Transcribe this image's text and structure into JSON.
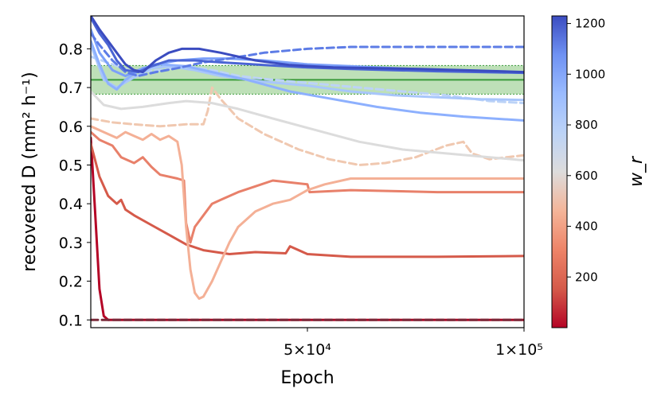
{
  "chart_data": {
    "type": "line",
    "xlabel": "Epoch",
    "ylabel": "recovered D (mm² h⁻¹)",
    "xlim": [
      0,
      100000
    ],
    "ylim": [
      0.08,
      0.885
    ],
    "x_ticks": [
      50000,
      100000
    ],
    "x_tick_labels": [
      "5×10⁴",
      "1×10⁵"
    ],
    "y_ticks": [
      0.1,
      0.2,
      0.3,
      0.4,
      0.5,
      0.6,
      0.7,
      0.8
    ],
    "y_tick_labels": [
      "0.1",
      "0.2",
      "0.3",
      "0.4",
      "0.5",
      "0.6",
      "0.7",
      "0.8"
    ],
    "grid": false,
    "reference": {
      "value": 0.72,
      "band": [
        0.683,
        0.757
      ],
      "color": "#3a9a3a",
      "band_color": "#a8d5a0"
    },
    "colorbar": {
      "label": "w_r",
      "range": [
        0,
        1230
      ],
      "ticks": [
        200,
        400,
        600,
        800,
        1000,
        1200
      ],
      "tick_labels": [
        "200",
        "400",
        "600",
        "800",
        "1000",
        "1200"
      ],
      "colormap": "coolwarm"
    },
    "series": [
      {
        "color": "#b40426",
        "dash": false,
        "points": [
          [
            0,
            0.57
          ],
          [
            1000,
            0.38
          ],
          [
            2000,
            0.18
          ],
          [
            3000,
            0.11
          ],
          [
            4000,
            0.1
          ],
          [
            100000,
            0.1
          ]
        ]
      },
      {
        "color": "#7a2a3a",
        "dash": true,
        "points": [
          [
            0,
            0.1
          ],
          [
            100000,
            0.1
          ]
        ]
      },
      {
        "color": "#d55a4a",
        "dash": false,
        "points": [
          [
            0,
            0.555
          ],
          [
            2000,
            0.47
          ],
          [
            4000,
            0.42
          ],
          [
            6000,
            0.4
          ],
          [
            7000,
            0.41
          ],
          [
            8000,
            0.385
          ],
          [
            10000,
            0.37
          ],
          [
            14000,
            0.345
          ],
          [
            18000,
            0.32
          ],
          [
            22000,
            0.295
          ],
          [
            26000,
            0.28
          ],
          [
            32000,
            0.27
          ],
          [
            38000,
            0.275
          ],
          [
            45000,
            0.272
          ],
          [
            46000,
            0.29
          ],
          [
            50000,
            0.27
          ],
          [
            60000,
            0.263
          ],
          [
            80000,
            0.263
          ],
          [
            100000,
            0.265
          ]
        ]
      },
      {
        "color": "#e8806a",
        "dash": false,
        "points": [
          [
            0,
            0.585
          ],
          [
            2000,
            0.565
          ],
          [
            5000,
            0.55
          ],
          [
            7000,
            0.52
          ],
          [
            10000,
            0.505
          ],
          [
            12000,
            0.52
          ],
          [
            14000,
            0.495
          ],
          [
            16000,
            0.475
          ],
          [
            20000,
            0.465
          ],
          [
            21500,
            0.46
          ],
          [
            22000,
            0.35
          ],
          [
            23000,
            0.3
          ],
          [
            23500,
            0.32
          ],
          [
            24000,
            0.34
          ],
          [
            26000,
            0.37
          ],
          [
            28000,
            0.4
          ],
          [
            30000,
            0.41
          ],
          [
            34000,
            0.43
          ],
          [
            38000,
            0.445
          ],
          [
            42000,
            0.46
          ],
          [
            46000,
            0.455
          ],
          [
            50000,
            0.45
          ],
          [
            50500,
            0.43
          ],
          [
            60000,
            0.435
          ],
          [
            80000,
            0.43
          ],
          [
            100000,
            0.43
          ]
        ]
      },
      {
        "color": "#f4b096",
        "dash": false,
        "points": [
          [
            0,
            0.6
          ],
          [
            3000,
            0.585
          ],
          [
            6000,
            0.57
          ],
          [
            8000,
            0.585
          ],
          [
            10000,
            0.575
          ],
          [
            12000,
            0.565
          ],
          [
            14000,
            0.58
          ],
          [
            16000,
            0.565
          ],
          [
            18000,
            0.575
          ],
          [
            20000,
            0.56
          ],
          [
            21000,
            0.5
          ],
          [
            22000,
            0.34
          ],
          [
            23000,
            0.23
          ],
          [
            24000,
            0.17
          ],
          [
            25000,
            0.155
          ],
          [
            26000,
            0.16
          ],
          [
            28000,
            0.2
          ],
          [
            30000,
            0.25
          ],
          [
            32000,
            0.3
          ],
          [
            34000,
            0.34
          ],
          [
            38000,
            0.38
          ],
          [
            42000,
            0.4
          ],
          [
            46000,
            0.41
          ],
          [
            50000,
            0.435
          ],
          [
            54000,
            0.45
          ],
          [
            60000,
            0.465
          ],
          [
            80000,
            0.465
          ],
          [
            100000,
            0.465
          ]
        ]
      },
      {
        "color": "#f0c8b0",
        "dash": true,
        "points": [
          [
            0,
            0.62
          ],
          [
            5000,
            0.61
          ],
          [
            10000,
            0.605
          ],
          [
            16000,
            0.6
          ],
          [
            22000,
            0.605
          ],
          [
            26000,
            0.605
          ],
          [
            27000,
            0.64
          ],
          [
            28000,
            0.7
          ],
          [
            30000,
            0.67
          ],
          [
            34000,
            0.62
          ],
          [
            40000,
            0.58
          ],
          [
            48000,
            0.54
          ],
          [
            55000,
            0.515
          ],
          [
            62000,
            0.5
          ],
          [
            68000,
            0.505
          ],
          [
            75000,
            0.52
          ],
          [
            82000,
            0.55
          ],
          [
            86000,
            0.56
          ],
          [
            88000,
            0.53
          ],
          [
            92000,
            0.515
          ],
          [
            96000,
            0.52
          ],
          [
            100000,
            0.525
          ]
        ]
      },
      {
        "color": "#dcdcdc",
        "dash": false,
        "points": [
          [
            0,
            0.69
          ],
          [
            3000,
            0.655
          ],
          [
            7000,
            0.645
          ],
          [
            12000,
            0.65
          ],
          [
            18000,
            0.66
          ],
          [
            22000,
            0.665
          ],
          [
            28000,
            0.66
          ],
          [
            34000,
            0.645
          ],
          [
            42000,
            0.62
          ],
          [
            52000,
            0.59
          ],
          [
            62000,
            0.56
          ],
          [
            72000,
            0.54
          ],
          [
            82000,
            0.53
          ],
          [
            92000,
            0.52
          ],
          [
            100000,
            0.512
          ]
        ]
      },
      {
        "color": "#bcd3f7",
        "dash": true,
        "points": [
          [
            0,
            0.78
          ],
          [
            5000,
            0.76
          ],
          [
            10000,
            0.74
          ],
          [
            16000,
            0.745
          ],
          [
            22000,
            0.755
          ],
          [
            28000,
            0.745
          ],
          [
            34000,
            0.73
          ],
          [
            42000,
            0.72
          ],
          [
            52000,
            0.71
          ],
          [
            62000,
            0.7
          ],
          [
            72000,
            0.69
          ],
          [
            82000,
            0.68
          ],
          [
            92000,
            0.665
          ],
          [
            100000,
            0.66
          ]
        ]
      },
      {
        "color": "#a8c6fb",
        "dash": false,
        "points": [
          [
            0,
            0.81
          ],
          [
            3000,
            0.72
          ],
          [
            6000,
            0.7
          ],
          [
            9000,
            0.72
          ],
          [
            14000,
            0.75
          ],
          [
            18000,
            0.755
          ],
          [
            24000,
            0.745
          ],
          [
            30000,
            0.73
          ],
          [
            40000,
            0.715
          ],
          [
            50000,
            0.705
          ],
          [
            60000,
            0.69
          ],
          [
            70000,
            0.68
          ],
          [
            80000,
            0.675
          ],
          [
            90000,
            0.67
          ],
          [
            100000,
            0.668
          ]
        ]
      },
      {
        "color": "#8db0fe",
        "dash": false,
        "points": [
          [
            0,
            0.82
          ],
          [
            2000,
            0.76
          ],
          [
            4000,
            0.71
          ],
          [
            6000,
            0.695
          ],
          [
            8000,
            0.72
          ],
          [
            12000,
            0.75
          ],
          [
            16000,
            0.76
          ],
          [
            22000,
            0.755
          ],
          [
            28000,
            0.74
          ],
          [
            36000,
            0.72
          ],
          [
            46000,
            0.69
          ],
          [
            56000,
            0.67
          ],
          [
            66000,
            0.65
          ],
          [
            76000,
            0.635
          ],
          [
            86000,
            0.625
          ],
          [
            100000,
            0.615
          ]
        ]
      },
      {
        "color": "#7b9ff9",
        "dash": false,
        "points": [
          [
            0,
            0.85
          ],
          [
            2000,
            0.79
          ],
          [
            5000,
            0.745
          ],
          [
            8000,
            0.73
          ],
          [
            11000,
            0.745
          ],
          [
            15000,
            0.76
          ],
          [
            20000,
            0.77
          ],
          [
            26000,
            0.775
          ],
          [
            32000,
            0.775
          ],
          [
            40000,
            0.77
          ],
          [
            50000,
            0.76
          ],
          [
            60000,
            0.755
          ],
          [
            70000,
            0.75
          ],
          [
            80000,
            0.745
          ],
          [
            90000,
            0.742
          ],
          [
            100000,
            0.738
          ]
        ]
      },
      {
        "color": "#5d7ce6",
        "dash": true,
        "points": [
          [
            0,
            0.84
          ],
          [
            2000,
            0.81
          ],
          [
            5000,
            0.77
          ],
          [
            8000,
            0.74
          ],
          [
            11000,
            0.73
          ],
          [
            15000,
            0.74
          ],
          [
            20000,
            0.75
          ],
          [
            26000,
            0.765
          ],
          [
            32000,
            0.775
          ],
          [
            40000,
            0.79
          ],
          [
            50000,
            0.8
          ],
          [
            60000,
            0.805
          ],
          [
            70000,
            0.805
          ],
          [
            80000,
            0.805
          ],
          [
            90000,
            0.805
          ],
          [
            100000,
            0.805
          ]
        ]
      },
      {
        "color": "#4a64d4",
        "dash": false,
        "points": [
          [
            0,
            0.88
          ],
          [
            2000,
            0.84
          ],
          [
            4000,
            0.81
          ],
          [
            6000,
            0.77
          ],
          [
            8000,
            0.745
          ],
          [
            11000,
            0.74
          ],
          [
            14000,
            0.755
          ],
          [
            18000,
            0.77
          ],
          [
            24000,
            0.77
          ],
          [
            30000,
            0.765
          ],
          [
            40000,
            0.758
          ],
          [
            50000,
            0.752
          ],
          [
            60000,
            0.748
          ],
          [
            70000,
            0.745
          ],
          [
            80000,
            0.742
          ],
          [
            90000,
            0.74
          ],
          [
            100000,
            0.738
          ]
        ]
      },
      {
        "color": "#3b4cc0",
        "dash": false,
        "points": [
          [
            0,
            0.885
          ],
          [
            2000,
            0.85
          ],
          [
            4000,
            0.82
          ],
          [
            6000,
            0.79
          ],
          [
            8000,
            0.76
          ],
          [
            10000,
            0.745
          ],
          [
            12000,
            0.74
          ],
          [
            15000,
            0.77
          ],
          [
            18000,
            0.79
          ],
          [
            21000,
            0.8
          ],
          [
            25000,
            0.8
          ],
          [
            30000,
            0.79
          ],
          [
            38000,
            0.77
          ],
          [
            46000,
            0.758
          ],
          [
            56000,
            0.752
          ],
          [
            66000,
            0.75
          ],
          [
            76000,
            0.748
          ],
          [
            86000,
            0.745
          ],
          [
            100000,
            0.74
          ]
        ]
      }
    ]
  }
}
